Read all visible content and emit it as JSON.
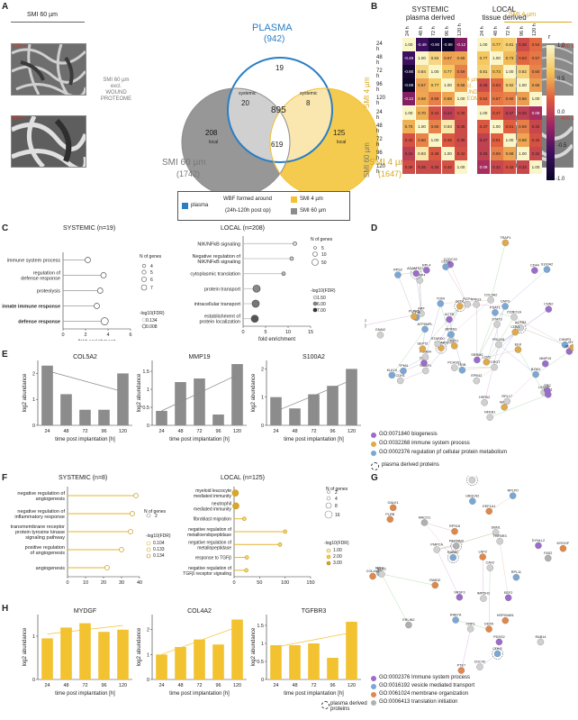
{
  "panels": {
    "A": "A",
    "B": "B",
    "C": "C",
    "D": "D",
    "E": "E",
    "F": "F",
    "G": "G",
    "H": "H"
  },
  "panelA": {
    "left_title": "SMI 60 µm",
    "right_title": "SMI 4 µm",
    "mag_100": "100 x",
    "mag_400": "400 x",
    "plasma_label": "PLASMA",
    "plasma_count": "(942)",
    "smi60_label": "SMI 60 µm",
    "smi60_count": "(1742)",
    "smi4_label": "SMI 4 µm",
    "smi4_count": "(1647)",
    "excl_left": "SMI 60 µm\nexcl.\nWOUND\nPROTEOME",
    "excl_right": "SMI 4 µm\nexcl.\nWOUND\nPROTEOME",
    "venn": {
      "plasma_only": "19",
      "plasma_smi60": "20",
      "plasma_smi4": "8",
      "center": "895",
      "smi60_only": "208",
      "smi4_only": "125",
      "smi60_smi4": "619",
      "systemic": "systemic",
      "local": "local"
    },
    "legend": {
      "plasma": "plasma",
      "wbf": "WBF formed around",
      "wbf_sub": "(24h-120h post op)",
      "smi4": "SMI 4 µm",
      "smi60": "SMI 60 µm"
    }
  },
  "panelB": {
    "systemic_title": "SYSTEMIC\nplasma derived",
    "local_title": "LOCAL\ntissue derived",
    "timepoints": [
      "24 h",
      "48 h",
      "72 h",
      "96 h",
      "120 h"
    ],
    "row_group_top": "SMI 4 µm",
    "row_group_bottom": "SMI 60 µm",
    "colorbar_label": "r",
    "colorbar_ticks": [
      "1.0",
      "0.5",
      "0.0",
      "-0.5",
      "-1.0"
    ],
    "sys_top": [
      [
        1.0,
        -0.49,
        -0.9,
        -0.99,
        -0.12
      ],
      [
        -0.49,
        1.0,
        0.84,
        0.67,
        0.68
      ],
      [
        -0.9,
        0.84,
        1.0,
        0.77,
        0.59
      ],
      [
        -0.99,
        0.67,
        0.77,
        1.0,
        0.68
      ],
      [
        -0.12,
        0.68,
        0.59,
        0.68,
        1.0
      ]
    ],
    "loc_top": [
      [
        1.0,
        0.77,
        0.81,
        0.36,
        0.54
      ],
      [
        0.77,
        1.0,
        0.73,
        0.53,
        0.57
      ],
      [
        0.81,
        0.73,
        1.0,
        0.82,
        0.6
      ],
      [
        0.36,
        0.53,
        0.82,
        1.0,
        0.66
      ],
      [
        0.54,
        0.57,
        0.6,
        0.66,
        1.0
      ]
    ],
    "sys_bot": [
      [
        1.0,
        0.7,
        0.42,
        0.24,
        0.39
      ],
      [
        0.7,
        1.0,
        0.6,
        0.93,
        0.35
      ],
      [
        0.42,
        0.6,
        1.0,
        0.48,
        0.35
      ],
      [
        0.24,
        0.93,
        0.48,
        1.0,
        0.42
      ],
      [
        0.39,
        0.35,
        0.35,
        0.42,
        1.0
      ]
    ],
    "loc_bot": [
      [
        1.0,
        0.47,
        0.27,
        0.26,
        0.09
      ],
      [
        0.47,
        1.0,
        0.51,
        0.59,
        0.32
      ],
      [
        0.27,
        0.51,
        1.0,
        0.68,
        0.42
      ],
      [
        0.26,
        0.59,
        0.68,
        1.0,
        0.32
      ],
      [
        0.09,
        0.32,
        0.42,
        0.32,
        1.0
      ]
    ]
  },
  "panelC": {
    "systemic_title": "SYSTEMIC (n=19)",
    "local_title": "LOCAL (n=208)",
    "sys_terms": [
      "immune system process",
      "regulation of\ndefense response",
      "proteolysis",
      "innate immune response",
      "defense response"
    ],
    "sys_values": [
      2.2,
      3.6,
      3.3,
      3.0,
      3.7
    ],
    "sys_xlabel": "fold enrichment",
    "sys_xticks": [
      "0",
      "2",
      "4",
      "6"
    ],
    "loc_terms": [
      "NIK/NFkB signaling",
      "Negative regulation of\nNIK/NFκB signaling",
      "cytoplasmic translation",
      "protein transport",
      "intracellular transport",
      "establishment of\nprotein localization"
    ],
    "loc_values": [
      11.5,
      10.8,
      9.0,
      3.0,
      2.8,
      2.6
    ],
    "loc_xlabel": "fold enrichment",
    "loc_xticks": [
      "0",
      "5",
      "10",
      "15"
    ],
    "sys_size_title": "N of genes",
    "sys_sizes": [
      "4",
      "5",
      "6",
      "7"
    ],
    "sys_fdr_title": "-log10(FDR)",
    "sys_fdr": [
      "0.134",
      "0.008"
    ],
    "loc_size_title": "N of genes",
    "loc_sizes": [
      "5",
      "10",
      "50"
    ],
    "loc_fdr_title": "-log10(FDR)",
    "loc_fdr": [
      "1.50",
      "6.00",
      "7.00"
    ]
  },
  "panelD": {
    "legend": [
      "GO:0071840 biogenesis",
      "GO:0032268 immune system process",
      "GO:0002376 regulation pf cellular protein metabolism"
    ],
    "plasma_note": "plasma derived proteins",
    "labels": [
      "S100A2",
      "EEK",
      "PSAT1",
      "SMAP1",
      "TONI",
      "LSAMP",
      "TNFAIP8",
      "ATP5MPL",
      "BZW1",
      "PCHS01",
      "CHMP3",
      "MAP4",
      "STARD0",
      "ARF",
      "CCDC22",
      "PDLIM1",
      "LDH",
      "ACTR3",
      "CKAP4",
      "CAPG",
      "DSC2",
      "CDH1",
      "PSMB4",
      "SRRM2",
      "GLO1",
      "HSPA2",
      "TRAP1",
      "CD44",
      "CD63",
      "IDH2",
      "HGB",
      "FCRGT",
      "ADAMTS13",
      "NFKB1",
      "CORO1A",
      "CPM",
      "MLKL",
      "KLK10",
      "PLPP5",
      "MMP19",
      "COL5A2",
      "STAT3",
      "RPL4",
      "RPS2",
      "RPL17",
      "HBA1",
      "MYH9",
      "GNAI2",
      "PRG3",
      "BPIFB1",
      "EPB42",
      "CDK1",
      "LCP1",
      "PCP4",
      "SRC",
      "ACTB",
      "CLTC",
      "SEPT2",
      "CNN2",
      "TPM4"
    ]
  },
  "panelE": {
    "charts": [
      {
        "title": "COL5A2",
        "values": [
          2.3,
          1.2,
          0.6,
          0.6,
          2.0
        ],
        "trend": [
          2.1,
          1.3
        ]
      },
      {
        "title": "MMP19",
        "values": [
          0.4,
          1.2,
          1.3,
          0.3,
          1.7
        ],
        "trend": [
          0.4,
          1.4
        ]
      },
      {
        "title": "S100A2",
        "values": [
          1.0,
          0.6,
          1.1,
          1.4,
          2.0
        ],
        "trend": [
          0.5,
          1.6
        ]
      }
    ],
    "categories": [
      "24",
      "48",
      "72",
      "96",
      "120"
    ],
    "ylabel": "log2 abundance",
    "xlabel": "time post implantation [h]",
    "yticks_a": [
      "0",
      "1",
      "2"
    ],
    "yticks_b": [
      "0",
      "0.5",
      "1",
      "1.5"
    ],
    "yticks_c": [
      "0",
      "1",
      "2"
    ]
  },
  "panelF": {
    "systemic_title": "SYSTEMIC (n=8)",
    "local_title": "LOCAL (n=125)",
    "sys_terms": [
      "negative regulation of\nangiogenesis",
      "negative regulation of\ninflammatory response",
      "transmembrane receptor\nprotein tyrosine kinase\nsignaling pathway",
      "positive regulation\nof angiogenesis",
      "angiogenesis"
    ],
    "sys_values": [
      38,
      36,
      35,
      30,
      22
    ],
    "sys_xticks": [
      "0",
      "10",
      "20",
      "30",
      "40"
    ],
    "loc_terms": [
      "myeloid leucocyte\nmediated immunity",
      "neutrophil\nmediated immunity",
      "fibroblast migration",
      "negative regulation of\nmetalloendopeptidase",
      "negative regulation of\nmetallopeptidase",
      "response to TGFβ",
      "negative regulation of\nTGFβ receptor signaling"
    ],
    "loc_values": [
      2.5,
      3.5,
      20,
      100,
      90,
      25,
      24
    ],
    "loc_xticks": [
      "0",
      "50",
      "100",
      "150"
    ],
    "sys_size_title": "N of genes",
    "sys_sizes": [
      "2"
    ],
    "sys_fdr_title": "-log10(FDR)",
    "sys_fdr": [
      "0.104",
      "0.133",
      "0.134"
    ],
    "loc_size_title": "N of genes",
    "loc_sizes": [
      "2",
      "4",
      "8",
      "16"
    ],
    "loc_fdr_title": "-log10(FDR)",
    "loc_fdr": [
      "1.00",
      "2.00",
      "3.00"
    ]
  },
  "panelG": {
    "legend": [
      "GO:0002376 Immune system process",
      "GO:0016192 vesicle mediated transport",
      "GO:0061024 membrane organization",
      "GO:0006413 translation initiation"
    ],
    "plasma_note": "plasma derived proteins",
    "labels": [
      "DYNLL2",
      "RAB1A",
      "RPN1",
      "RAB14",
      "MLEC",
      "RAB7A",
      "SRSF3",
      "PACSIN3",
      "GALK1",
      "DBN1",
      "MACO1",
      "LNP2",
      "RPL11",
      "RPS16",
      "PTK7",
      "IMPDH2",
      "CDH2",
      "CDC42",
      "RAB5C",
      "RAB10",
      "EEF2",
      "EEF1A1",
      "RPLP0",
      "HSP90AB1",
      "CAV2",
      "PMPCA",
      "UBQLN2",
      "ERLIN2",
      "PDSS2",
      "CRP1",
      "COL4A2",
      "TGFBR3",
      "MYDGF",
      "PLRB",
      "FAS2",
      "DDX5"
    ]
  },
  "panelH": {
    "charts": [
      {
        "title": "MYDGF",
        "values": [
          0.95,
          1.2,
          1.3,
          1.1,
          1.15
        ],
        "trend": [
          1.05,
          1.25
        ]
      },
      {
        "title": "COL4A2",
        "values": [
          1.0,
          1.3,
          1.6,
          1.4,
          2.4
        ],
        "trend": [
          1.0,
          2.1
        ]
      },
      {
        "title": "TGFBR3",
        "values": [
          0.95,
          0.95,
          1.0,
          0.6,
          1.6
        ],
        "trend": [
          0.9,
          1.3
        ]
      }
    ],
    "categories": [
      "24",
      "48",
      "72",
      "96",
      "120"
    ],
    "ylabel": "log2 abundance",
    "xlabel": "time post implantation [h]"
  },
  "colors": {
    "plasma": "#2a7ec2",
    "smi4": "#f2c230",
    "smi60": "#8c8c8c",
    "gold": "#e3b42b",
    "bar_grey": "#8c8c8c"
  }
}
